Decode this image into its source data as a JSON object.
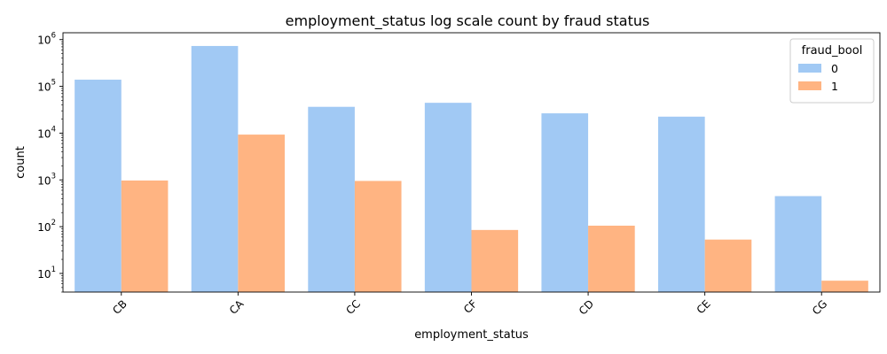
{
  "chart_data": {
    "type": "bar",
    "title": "employment_status log scale count by fraud status",
    "xlabel": "employment_status",
    "ylabel": "count",
    "yscale": "log",
    "ylim": [
      4,
      1400000
    ],
    "yticks": [
      {
        "value": 10,
        "base": "10",
        "exp": "1"
      },
      {
        "value": 100,
        "base": "10",
        "exp": "2"
      },
      {
        "value": 1000,
        "base": "10",
        "exp": "3"
      },
      {
        "value": 10000,
        "base": "10",
        "exp": "4"
      },
      {
        "value": 100000,
        "base": "10",
        "exp": "5"
      },
      {
        "value": 1000000,
        "base": "10",
        "exp": "6"
      }
    ],
    "categories": [
      "CB",
      "CA",
      "CC",
      "CF",
      "CD",
      "CE",
      "CG"
    ],
    "legend_title": "fraud_bool",
    "legend_position": "top-right",
    "grid": false,
    "series": [
      {
        "name": "0",
        "color": "#a1c9f4",
        "values": [
          139000,
          730000,
          36500,
          44500,
          26500,
          22500,
          450
        ]
      },
      {
        "name": "1",
        "color": "#ffb482",
        "values": [
          970,
          9300,
          950,
          85,
          105,
          53,
          7
        ]
      }
    ]
  }
}
